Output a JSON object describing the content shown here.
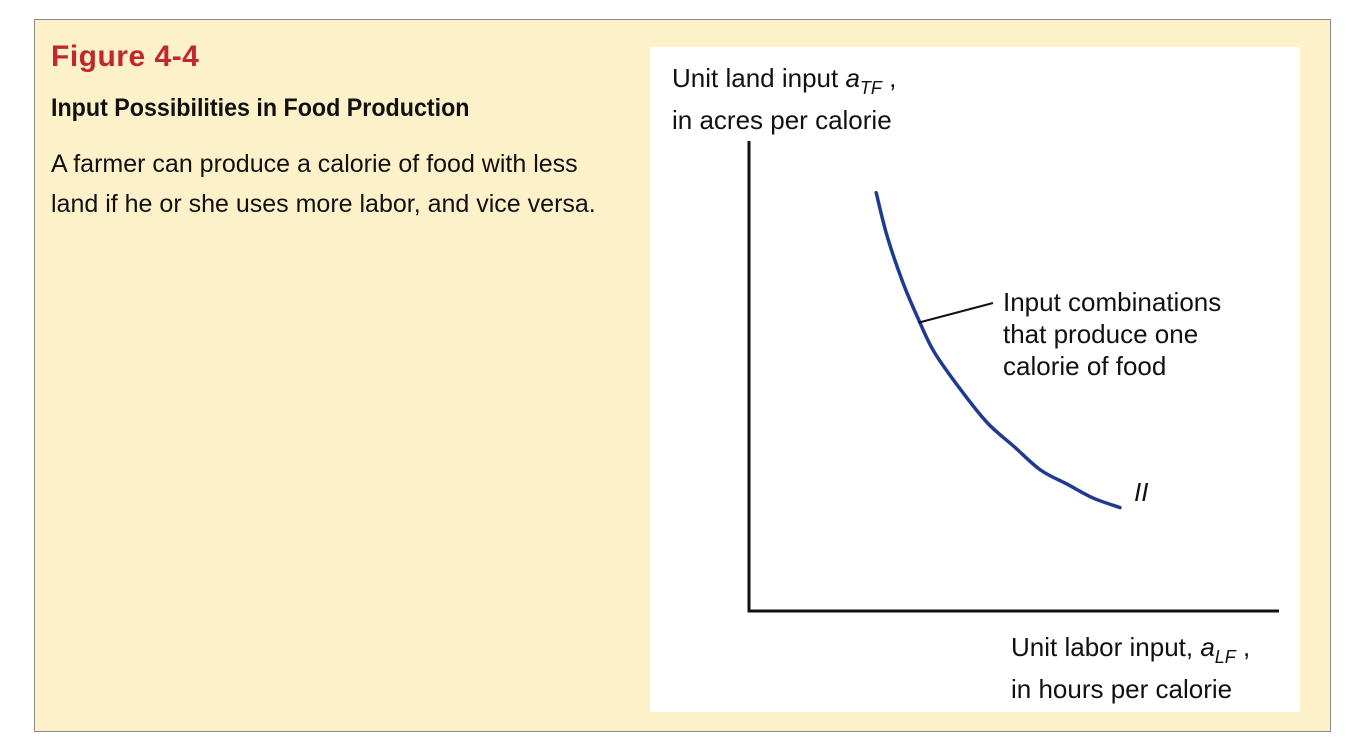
{
  "figure": {
    "number": "Figure 4-4",
    "title": "Input Possibilities in Food Production",
    "caption": "A farmer can produce a calorie of food with less land if he or she uses more labor, and vice versa."
  },
  "chart_data": {
    "type": "line",
    "ylabel": {
      "line1_text": "Unit land input ",
      "symbol": "a",
      "subscript": "TF",
      "suffix": " ,",
      "line2": "in acres per calorie"
    },
    "xlabel": {
      "line1_text": "Unit labor input, ",
      "symbol": "a",
      "subscript": "LF",
      "suffix": " ,",
      "line2": "in hours per calorie"
    },
    "series": [
      {
        "name": "II",
        "color": "#1f3a93",
        "x": [
          0.24,
          0.26,
          0.29,
          0.32,
          0.35,
          0.4,
          0.45,
          0.5,
          0.55,
          0.6,
          0.65,
          0.7
        ],
        "y": [
          0.89,
          0.8,
          0.7,
          0.62,
          0.55,
          0.47,
          0.4,
          0.35,
          0.3,
          0.27,
          0.24,
          0.22
        ]
      }
    ],
    "annotation": {
      "lines": [
        "Input combinations",
        "that produce one",
        "calorie of food"
      ],
      "points_to": [
        0.32,
        0.62
      ]
    },
    "xlim": [
      0,
      1
    ],
    "ylim": [
      0,
      1
    ],
    "grid": false,
    "ticks": false
  }
}
